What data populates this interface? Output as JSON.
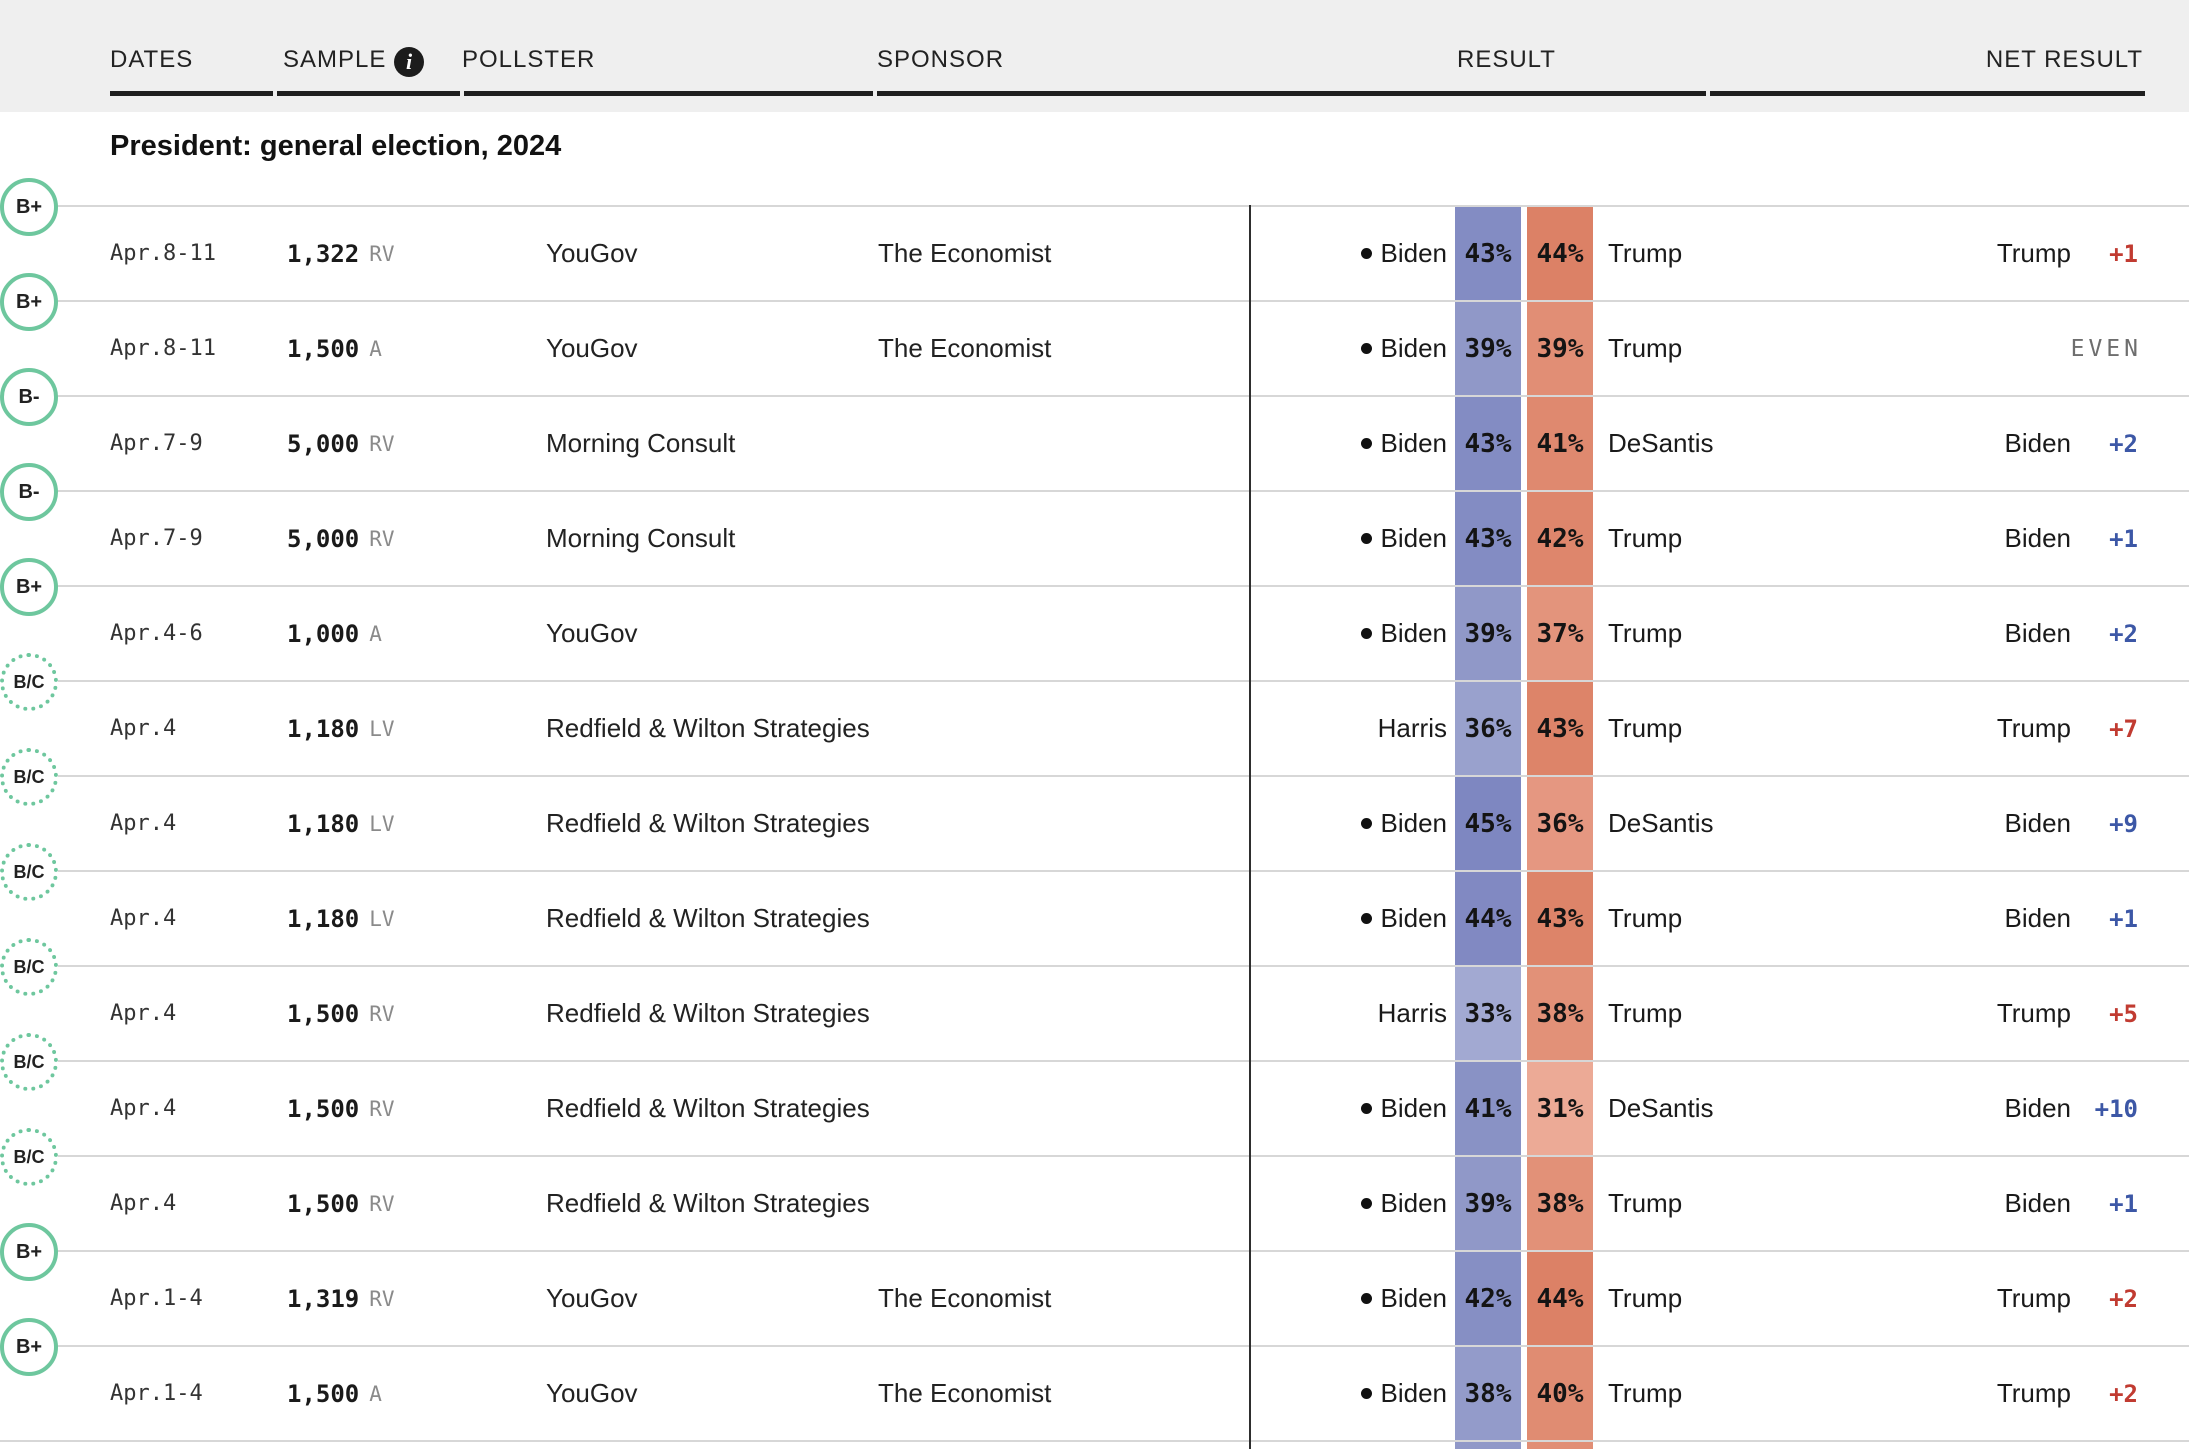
{
  "header": {
    "columns": {
      "dates": "DATES",
      "sample": "SAMPLE",
      "pollster": "POLLSTER",
      "sponsor": "SPONSOR",
      "result": "RESULT",
      "net_result": "NET RESULT"
    },
    "info_icon_glyph": "i"
  },
  "section": {
    "title": "President: general election, 2024"
  },
  "colors": {
    "grade_ring_green": "#6ec79e",
    "net_dem": "#3c57a6",
    "net_rep": "#c13b31",
    "net_even": "#6e6e6e",
    "header_bg": "#efefef"
  },
  "rows": [
    {
      "dates": "Apr.8-11",
      "sample": "1,322",
      "sample_type": "RV",
      "grade": "B+",
      "grade_provisional": false,
      "pollster": "YouGov",
      "sponsor": "The Economist",
      "dem": {
        "name": "Biden",
        "incumbent": true,
        "pct": "43%",
        "color": "#838cc3"
      },
      "rep": {
        "name": "Trump",
        "pct": "44%",
        "color": "#dc8166"
      },
      "net": {
        "leader": "Trump",
        "value": "+1",
        "party": "rep"
      }
    },
    {
      "dates": "Apr.8-11",
      "sample": "1,500",
      "sample_type": "A",
      "grade": "B+",
      "grade_provisional": false,
      "pollster": "YouGov",
      "sponsor": "The Economist",
      "dem": {
        "name": "Biden",
        "incumbent": true,
        "pct": "39%",
        "color": "#9098c8"
      },
      "rep": {
        "name": "Trump",
        "pct": "39%",
        "color": "#e18e75"
      },
      "net": {
        "leader": "",
        "value": "EVEN",
        "party": "even"
      }
    },
    {
      "dates": "Apr.7-9",
      "sample": "5,000",
      "sample_type": "RV",
      "grade": "B-",
      "grade_provisional": false,
      "pollster": "Morning Consult",
      "sponsor": "",
      "dem": {
        "name": "Biden",
        "incumbent": true,
        "pct": "43%",
        "color": "#838cc3"
      },
      "rep": {
        "name": "DeSantis",
        "pct": "41%",
        "color": "#df896f"
      },
      "net": {
        "leader": "Biden",
        "value": "+2",
        "party": "dem"
      }
    },
    {
      "dates": "Apr.7-9",
      "sample": "5,000",
      "sample_type": "RV",
      "grade": "B-",
      "grade_provisional": false,
      "pollster": "Morning Consult",
      "sponsor": "",
      "dem": {
        "name": "Biden",
        "incumbent": true,
        "pct": "43%",
        "color": "#838cc3"
      },
      "rep": {
        "name": "Trump",
        "pct": "42%",
        "color": "#de866c"
      },
      "net": {
        "leader": "Biden",
        "value": "+1",
        "party": "dem"
      }
    },
    {
      "dates": "Apr.4-6",
      "sample": "1,000",
      "sample_type": "A",
      "grade": "B+",
      "grade_provisional": false,
      "pollster": "YouGov",
      "sponsor": "",
      "dem": {
        "name": "Biden",
        "incumbent": true,
        "pct": "39%",
        "color": "#9098c8"
      },
      "rep": {
        "name": "Trump",
        "pct": "37%",
        "color": "#e3947c"
      },
      "net": {
        "leader": "Biden",
        "value": "+2",
        "party": "dem"
      }
    },
    {
      "dates": "Apr.4",
      "sample": "1,180",
      "sample_type": "LV",
      "grade": "B/C",
      "grade_provisional": true,
      "pollster": "Redfield & Wilton Strategies",
      "sponsor": "",
      "dem": {
        "name": "Harris",
        "incumbent": false,
        "pct": "36%",
        "color": "#99a1cd"
      },
      "rep": {
        "name": "Trump",
        "pct": "43%",
        "color": "#dd8469"
      },
      "net": {
        "leader": "Trump",
        "value": "+7",
        "party": "rep"
      }
    },
    {
      "dates": "Apr.4",
      "sample": "1,180",
      "sample_type": "LV",
      "grade": "B/C",
      "grade_provisional": true,
      "pollster": "Redfield & Wilton Strategies",
      "sponsor": "",
      "dem": {
        "name": "Biden",
        "incumbent": true,
        "pct": "45%",
        "color": "#7e87c1"
      },
      "rep": {
        "name": "DeSantis",
        "pct": "36%",
        "color": "#e59781"
      },
      "net": {
        "leader": "Biden",
        "value": "+9",
        "party": "dem"
      }
    },
    {
      "dates": "Apr.4",
      "sample": "1,180",
      "sample_type": "LV",
      "grade": "B/C",
      "grade_provisional": true,
      "pollster": "Redfield & Wilton Strategies",
      "sponsor": "",
      "dem": {
        "name": "Biden",
        "incumbent": true,
        "pct": "44%",
        "color": "#8189c2"
      },
      "rep": {
        "name": "Trump",
        "pct": "43%",
        "color": "#dd8469"
      },
      "net": {
        "leader": "Biden",
        "value": "+1",
        "party": "dem"
      }
    },
    {
      "dates": "Apr.4",
      "sample": "1,500",
      "sample_type": "RV",
      "grade": "B/C",
      "grade_provisional": true,
      "pollster": "Redfield & Wilton Strategies",
      "sponsor": "",
      "dem": {
        "name": "Harris",
        "incumbent": false,
        "pct": "33%",
        "color": "#a2a9d2"
      },
      "rep": {
        "name": "Trump",
        "pct": "38%",
        "color": "#e29178"
      },
      "net": {
        "leader": "Trump",
        "value": "+5",
        "party": "rep"
      }
    },
    {
      "dates": "Apr.4",
      "sample": "1,500",
      "sample_type": "RV",
      "grade": "B/C",
      "grade_provisional": true,
      "pollster": "Redfield & Wilton Strategies",
      "sponsor": "",
      "dem": {
        "name": "Biden",
        "incumbent": true,
        "pct": "41%",
        "color": "#8992c5"
      },
      "rep": {
        "name": "DeSantis",
        "pct": "31%",
        "color": "#ecaa96"
      },
      "net": {
        "leader": "Biden",
        "value": "+10",
        "party": "dem"
      }
    },
    {
      "dates": "Apr.4",
      "sample": "1,500",
      "sample_type": "RV",
      "grade": "B/C",
      "grade_provisional": true,
      "pollster": "Redfield & Wilton Strategies",
      "sponsor": "",
      "dem": {
        "name": "Biden",
        "incumbent": true,
        "pct": "39%",
        "color": "#9098c8"
      },
      "rep": {
        "name": "Trump",
        "pct": "38%",
        "color": "#e29178"
      },
      "net": {
        "leader": "Biden",
        "value": "+1",
        "party": "dem"
      }
    },
    {
      "dates": "Apr.1-4",
      "sample": "1,319",
      "sample_type": "RV",
      "grade": "B+",
      "grade_provisional": false,
      "pollster": "YouGov",
      "sponsor": "The Economist",
      "dem": {
        "name": "Biden",
        "incumbent": true,
        "pct": "42%",
        "color": "#868fc4"
      },
      "rep": {
        "name": "Trump",
        "pct": "44%",
        "color": "#dc8166"
      },
      "net": {
        "leader": "Trump",
        "value": "+2",
        "party": "rep"
      }
    },
    {
      "dates": "Apr.1-4",
      "sample": "1,500",
      "sample_type": "A",
      "grade": "B+",
      "grade_provisional": false,
      "pollster": "YouGov",
      "sponsor": "The Economist",
      "dem": {
        "name": "Biden",
        "incumbent": true,
        "pct": "38%",
        "color": "#939bca"
      },
      "rep": {
        "name": "Trump",
        "pct": "40%",
        "color": "#e08c72"
      },
      "net": {
        "leader": "Trump",
        "value": "+2",
        "party": "rep"
      }
    }
  ],
  "partial_row": {
    "dem_color": "#9098c8",
    "rep_color": "#e18e75"
  }
}
